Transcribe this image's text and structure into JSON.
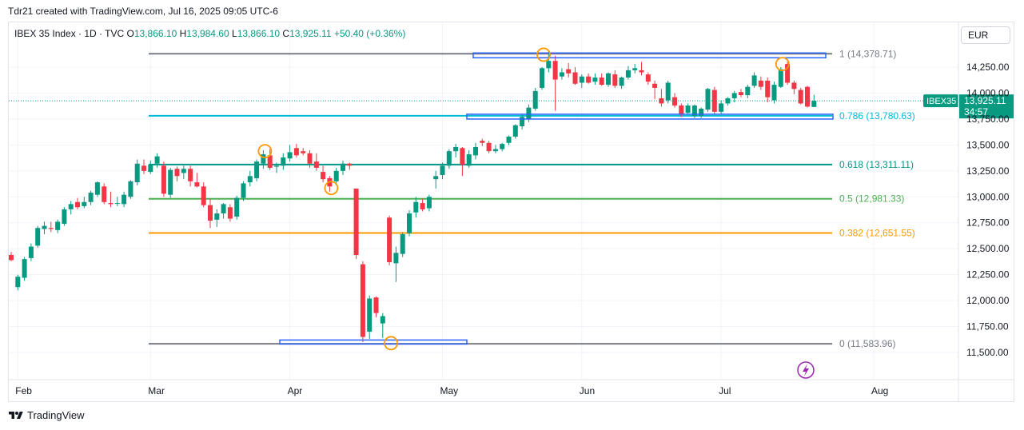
{
  "header": {
    "caption": "Tdr21 created with TradingView.com, Jul 16, 2025 09:05 UTC-6"
  },
  "legend": {
    "symbol": "IBEX 35 Index · 1D · TVC",
    "o_label": "O",
    "o_value": "13,866.10",
    "h_label": "H",
    "h_value": "13,984.60",
    "l_label": "L",
    "l_value": "13,866.10",
    "c_label": "C",
    "c_value": "13,925.11",
    "change": "+50.40 (+0.36%)"
  },
  "currency": "EUR",
  "footer": {
    "brand": "TradingView"
  },
  "colors": {
    "up": "#089981",
    "down": "#f23645",
    "fib_1": "#787b86",
    "fib_0786": "#00bcd4",
    "fib_0618": "#009688",
    "fib_05": "#4caf50",
    "fib_0382": "#ff9800",
    "fib_0": "#787b86",
    "box": "#2962ff",
    "circle": "#ff9800",
    "price_tag": "#089981"
  },
  "chart_data": {
    "type": "candlestick",
    "symbol_tag": "IBEX35",
    "last_price": "13,925.11",
    "countdown": "34:57",
    "y_ticks": [
      11500,
      11750,
      12000,
      12250,
      12500,
      12750,
      13000,
      13250,
      13500,
      13750,
      14000,
      14250
    ],
    "y_tick_labels": [
      "11,500.00",
      "11,750.00",
      "12,000.00",
      "12,250.00",
      "12,500.00",
      "12,750.00",
      "13,000.00",
      "13,250.00",
      "13,500.00",
      "13,750.00",
      "14,000.00",
      "14,250.00"
    ],
    "x_labels": [
      {
        "label": "Feb",
        "date": "2025-02-03"
      },
      {
        "label": "Mar",
        "date": "2025-03-03"
      },
      {
        "label": "Apr",
        "date": "2025-04-01"
      },
      {
        "label": "May",
        "date": "2025-05-02"
      },
      {
        "label": "Jun",
        "date": "2025-06-02"
      },
      {
        "label": "Jul",
        "date": "2025-07-01"
      },
      {
        "label": "Aug",
        "date": "2025-08-01"
      }
    ],
    "fib_levels": [
      {
        "ratio": 1,
        "price": 14378.71,
        "label": "1 (14,378.71)",
        "color_key": "fib_1"
      },
      {
        "ratio": 0.786,
        "price": 13780.63,
        "label": "0.786 (13,780.63)",
        "color_key": "fib_0786"
      },
      {
        "ratio": 0.618,
        "price": 13311.11,
        "label": "0.618 (13,311.11)",
        "color_key": "fib_0618"
      },
      {
        "ratio": 0.5,
        "price": 12981.33,
        "label": "0.5 (12,981.33)",
        "color_key": "fib_05"
      },
      {
        "ratio": 0.382,
        "price": 12651.55,
        "label": "0.382 (12,651.55)",
        "color_key": "fib_0382"
      },
      {
        "ratio": 0,
        "price": 11583.96,
        "label": "0 (11,583.96)",
        "color_key": "fib_0"
      }
    ],
    "candles": [
      {
        "o": 12440,
        "h": 12470,
        "l": 12380,
        "c": 12390
      },
      {
        "o": 12130,
        "h": 12250,
        "l": 12100,
        "c": 12230
      },
      {
        "o": 12220,
        "h": 12420,
        "l": 12190,
        "c": 12400
      },
      {
        "o": 12410,
        "h": 12550,
        "l": 12380,
        "c": 12520
      },
      {
        "o": 12530,
        "h": 12720,
        "l": 12510,
        "c": 12700
      },
      {
        "o": 12690,
        "h": 12760,
        "l": 12640,
        "c": 12720
      },
      {
        "o": 12700,
        "h": 12760,
        "l": 12660,
        "c": 12690
      },
      {
        "o": 12680,
        "h": 12780,
        "l": 12650,
        "c": 12760
      },
      {
        "o": 12740,
        "h": 12900,
        "l": 12720,
        "c": 12880
      },
      {
        "o": 12880,
        "h": 12960,
        "l": 12830,
        "c": 12930
      },
      {
        "o": 12950,
        "h": 12990,
        "l": 12880,
        "c": 12900
      },
      {
        "o": 12910,
        "h": 13000,
        "l": 12890,
        "c": 12950
      },
      {
        "o": 12950,
        "h": 13060,
        "l": 12920,
        "c": 13040
      },
      {
        "o": 13020,
        "h": 13150,
        "l": 13000,
        "c": 13140
      },
      {
        "o": 13100,
        "h": 13130,
        "l": 12930,
        "c": 12950
      },
      {
        "o": 12940,
        "h": 13050,
        "l": 12900,
        "c": 12930
      },
      {
        "o": 12940,
        "h": 13000,
        "l": 12910,
        "c": 12940
      },
      {
        "o": 12930,
        "h": 13050,
        "l": 12900,
        "c": 13020
      },
      {
        "o": 13000,
        "h": 13160,
        "l": 12980,
        "c": 13150
      },
      {
        "o": 13140,
        "h": 13360,
        "l": 13110,
        "c": 13320
      },
      {
        "o": 13300,
        "h": 13360,
        "l": 13220,
        "c": 13250
      },
      {
        "o": 13240,
        "h": 13350,
        "l": 13220,
        "c": 13310
      },
      {
        "o": 13320,
        "h": 13420,
        "l": 13280,
        "c": 13390
      },
      {
        "o": 13300,
        "h": 13340,
        "l": 13000,
        "c": 13030
      },
      {
        "o": 13020,
        "h": 13280,
        "l": 12990,
        "c": 13260
      },
      {
        "o": 13270,
        "h": 13290,
        "l": 13150,
        "c": 13200
      },
      {
        "o": 13230,
        "h": 13300,
        "l": 13170,
        "c": 13270
      },
      {
        "o": 13270,
        "h": 13300,
        "l": 13100,
        "c": 13150
      },
      {
        "o": 13140,
        "h": 13230,
        "l": 13090,
        "c": 13100
      },
      {
        "o": 13100,
        "h": 13140,
        "l": 12900,
        "c": 12920
      },
      {
        "o": 12920,
        "h": 12980,
        "l": 12700,
        "c": 12770
      },
      {
        "o": 12780,
        "h": 12880,
        "l": 12710,
        "c": 12840
      },
      {
        "o": 12840,
        "h": 12940,
        "l": 12790,
        "c": 12930
      },
      {
        "o": 12900,
        "h": 12930,
        "l": 12760,
        "c": 12790
      },
      {
        "o": 12810,
        "h": 13010,
        "l": 12780,
        "c": 12990
      },
      {
        "o": 12990,
        "h": 13150,
        "l": 12960,
        "c": 13130
      },
      {
        "o": 13140,
        "h": 13250,
        "l": 13100,
        "c": 13200
      },
      {
        "o": 13180,
        "h": 13360,
        "l": 13150,
        "c": 13340
      },
      {
        "o": 13320,
        "h": 13450,
        "l": 13270,
        "c": 13410
      },
      {
        "o": 13400,
        "h": 13460,
        "l": 13260,
        "c": 13280
      },
      {
        "o": 13290,
        "h": 13330,
        "l": 13230,
        "c": 13300
      },
      {
        "o": 13300,
        "h": 13420,
        "l": 13260,
        "c": 13380
      },
      {
        "o": 13370,
        "h": 13500,
        "l": 13340,
        "c": 13430
      },
      {
        "o": 13470,
        "h": 13510,
        "l": 13380,
        "c": 13400
      },
      {
        "o": 13440,
        "h": 13470,
        "l": 13400,
        "c": 13420
      },
      {
        "o": 13420,
        "h": 13450,
        "l": 13280,
        "c": 13320
      },
      {
        "o": 13340,
        "h": 13420,
        "l": 13250,
        "c": 13280
      },
      {
        "o": 13240,
        "h": 13300,
        "l": 13140,
        "c": 13170
      },
      {
        "o": 13180,
        "h": 13200,
        "l": 13050,
        "c": 13100
      },
      {
        "o": 13150,
        "h": 13280,
        "l": 13110,
        "c": 13250
      },
      {
        "o": 13250,
        "h": 13350,
        "l": 13210,
        "c": 13320
      },
      {
        "o": 13320,
        "h": 13330,
        "l": 13260,
        "c": 13300
      },
      {
        "o": 13080,
        "h": 13080,
        "l": 12400,
        "c": 12440
      },
      {
        "o": 12350,
        "h": 12380,
        "l": 11600,
        "c": 11650
      },
      {
        "o": 11700,
        "h": 12050,
        "l": 11630,
        "c": 12020
      },
      {
        "o": 12030,
        "h": 12040,
        "l": 11840,
        "c": 11880
      },
      {
        "o": 11780,
        "h": 11880,
        "l": 11640,
        "c": 11850
      },
      {
        "o": 12800,
        "h": 12820,
        "l": 12340,
        "c": 12370
      },
      {
        "o": 12360,
        "h": 12520,
        "l": 12180,
        "c": 12460
      },
      {
        "o": 12450,
        "h": 12660,
        "l": 12420,
        "c": 12640
      },
      {
        "o": 12650,
        "h": 12870,
        "l": 12620,
        "c": 12840
      },
      {
        "o": 12850,
        "h": 13000,
        "l": 12800,
        "c": 12950
      },
      {
        "o": 12940,
        "h": 12980,
        "l": 12860,
        "c": 12880
      },
      {
        "o": 12890,
        "h": 13020,
        "l": 12860,
        "c": 13000
      },
      {
        "o": 13170,
        "h": 13250,
        "l": 13080,
        "c": 13200
      },
      {
        "o": 13210,
        "h": 13330,
        "l": 13170,
        "c": 13300
      },
      {
        "o": 13300,
        "h": 13460,
        "l": 13270,
        "c": 13440
      },
      {
        "o": 13440,
        "h": 13510,
        "l": 13380,
        "c": 13480
      },
      {
        "o": 13470,
        "h": 13480,
        "l": 13200,
        "c": 13310
      },
      {
        "o": 13300,
        "h": 13450,
        "l": 13280,
        "c": 13410
      },
      {
        "o": 13400,
        "h": 13520,
        "l": 13360,
        "c": 13480
      },
      {
        "o": 13540,
        "h": 13560,
        "l": 13490,
        "c": 13520
      },
      {
        "o": 13520,
        "h": 13540,
        "l": 13420,
        "c": 13440
      },
      {
        "o": 13440,
        "h": 13500,
        "l": 13420,
        "c": 13460
      },
      {
        "o": 13460,
        "h": 13520,
        "l": 13440,
        "c": 13510
      },
      {
        "o": 13520,
        "h": 13590,
        "l": 13500,
        "c": 13580
      },
      {
        "o": 13580,
        "h": 13700,
        "l": 13560,
        "c": 13690
      },
      {
        "o": 13680,
        "h": 13800,
        "l": 13650,
        "c": 13770
      },
      {
        "o": 13750,
        "h": 13890,
        "l": 13720,
        "c": 13860
      },
      {
        "o": 13850,
        "h": 14050,
        "l": 13830,
        "c": 14020
      },
      {
        "o": 14050,
        "h": 14250,
        "l": 14030,
        "c": 14240
      },
      {
        "o": 14240,
        "h": 14400,
        "l": 14200,
        "c": 14310
      },
      {
        "o": 14310,
        "h": 14360,
        "l": 13830,
        "c": 14130
      },
      {
        "o": 14160,
        "h": 14240,
        "l": 14130,
        "c": 14200
      },
      {
        "o": 14230,
        "h": 14290,
        "l": 14150,
        "c": 14190
      },
      {
        "o": 14200,
        "h": 14250,
        "l": 14080,
        "c": 14090
      },
      {
        "o": 14100,
        "h": 14180,
        "l": 14050,
        "c": 14160
      },
      {
        "o": 14160,
        "h": 14190,
        "l": 14090,
        "c": 14100
      },
      {
        "o": 14110,
        "h": 14190,
        "l": 14080,
        "c": 14150
      },
      {
        "o": 14150,
        "h": 14190,
        "l": 14070,
        "c": 14080
      },
      {
        "o": 14080,
        "h": 14200,
        "l": 14060,
        "c": 14190
      },
      {
        "o": 14180,
        "h": 14220,
        "l": 14050,
        "c": 14070
      },
      {
        "o": 14070,
        "h": 14160,
        "l": 14040,
        "c": 14150
      },
      {
        "o": 14150,
        "h": 14260,
        "l": 14130,
        "c": 14220
      },
      {
        "o": 14220,
        "h": 14280,
        "l": 14190,
        "c": 14240
      },
      {
        "o": 14220,
        "h": 14300,
        "l": 14170,
        "c": 14200
      },
      {
        "o": 14180,
        "h": 14200,
        "l": 14080,
        "c": 14110
      },
      {
        "o": 14090,
        "h": 14120,
        "l": 13940,
        "c": 14050
      },
      {
        "o": 13950,
        "h": 14040,
        "l": 13870,
        "c": 13900
      },
      {
        "o": 13930,
        "h": 14120,
        "l": 13900,
        "c": 14100
      },
      {
        "o": 13960,
        "h": 14000,
        "l": 13860,
        "c": 13880
      },
      {
        "o": 13880,
        "h": 13900,
        "l": 13770,
        "c": 13790
      },
      {
        "o": 13810,
        "h": 13900,
        "l": 13790,
        "c": 13880
      },
      {
        "o": 13780,
        "h": 13890,
        "l": 13760,
        "c": 13880
      },
      {
        "o": 13780,
        "h": 13860,
        "l": 13760,
        "c": 13850
      },
      {
        "o": 13840,
        "h": 14050,
        "l": 13820,
        "c": 14040
      },
      {
        "o": 14030,
        "h": 14060,
        "l": 13800,
        "c": 13820
      },
      {
        "o": 13820,
        "h": 13930,
        "l": 13800,
        "c": 13900
      },
      {
        "o": 13900,
        "h": 13960,
        "l": 13880,
        "c": 13950
      },
      {
        "o": 13950,
        "h": 14020,
        "l": 13910,
        "c": 14000
      },
      {
        "o": 14010,
        "h": 14040,
        "l": 13960,
        "c": 13980
      },
      {
        "o": 13980,
        "h": 14080,
        "l": 13950,
        "c": 14060
      },
      {
        "o": 14070,
        "h": 14200,
        "l": 14050,
        "c": 14170
      },
      {
        "o": 14120,
        "h": 14160,
        "l": 14030,
        "c": 14060
      },
      {
        "o": 14120,
        "h": 14150,
        "l": 13910,
        "c": 13960
      },
      {
        "o": 13930,
        "h": 14110,
        "l": 13900,
        "c": 14080
      },
      {
        "o": 14060,
        "h": 14250,
        "l": 14050,
        "c": 14230
      },
      {
        "o": 14280,
        "h": 14300,
        "l": 14080,
        "c": 14100
      },
      {
        "o": 14100,
        "h": 14120,
        "l": 13990,
        "c": 14040
      },
      {
        "o": 14030,
        "h": 14050,
        "l": 13890,
        "c": 13900
      },
      {
        "o": 14060,
        "h": 14070,
        "l": 13860,
        "c": 13870
      },
      {
        "o": 13866.1,
        "h": 13984.6,
        "l": 13866.1,
        "c": 13925.11
      }
    ]
  }
}
